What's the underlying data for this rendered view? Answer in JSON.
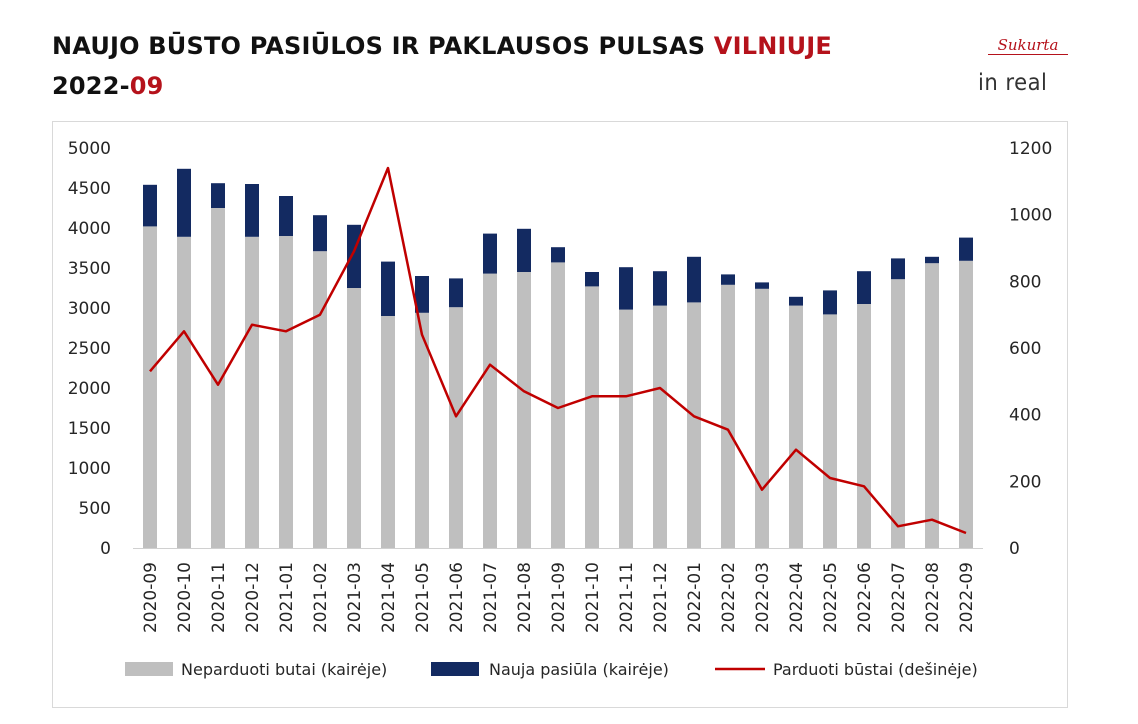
{
  "header": {
    "title_main": "NAUJO BŪSTO PASIŪLOS IR PAKLAUSOS PULSAS",
    "title_city": "VILNIUJE",
    "period_year": "2022-",
    "period_month": "09"
  },
  "logo": {
    "top_text": "Sukurta",
    "bottom_text": "in real"
  },
  "colors": {
    "accent": "#b5121b",
    "unsold_bar": "#bfbfbf",
    "new_supply_bar": "#132a61",
    "sold_line": "#c00000"
  },
  "chart_data": {
    "type": "bar",
    "stacked": true,
    "categories": [
      "2020-09",
      "2020-10",
      "2020-11",
      "2020-12",
      "2021-01",
      "2021-02",
      "2021-03",
      "2021-04",
      "2021-05",
      "2021-06",
      "2021-07",
      "2021-08",
      "2021-09",
      "2021-10",
      "2021-11",
      "2021-12",
      "2022-01",
      "2022-02",
      "2022-03",
      "2022-04",
      "2022-05",
      "2022-06",
      "2022-07",
      "2022-08",
      "2022-09"
    ],
    "series": [
      {
        "name": "Neparduoti butai (kairėje)",
        "type": "bar",
        "axis": "left",
        "values": [
          4020,
          3890,
          4250,
          3890,
          3900,
          3710,
          3250,
          2900,
          2940,
          3010,
          3430,
          3450,
          3570,
          3270,
          2980,
          3030,
          3070,
          3290,
          3240,
          3030,
          2920,
          3050,
          3360,
          3560,
          3590
        ]
      },
      {
        "name": "Nauja pasiūla (kairėje)",
        "type": "bar",
        "axis": "left",
        "values": [
          520,
          850,
          310,
          660,
          500,
          450,
          790,
          680,
          460,
          360,
          500,
          540,
          190,
          180,
          530,
          430,
          570,
          130,
          80,
          110,
          300,
          410,
          260,
          80,
          290
        ]
      },
      {
        "name": "Parduoti būstai (dešinėje)",
        "type": "line",
        "axis": "right",
        "values": [
          530,
          650,
          490,
          670,
          650,
          700,
          890,
          1140,
          640,
          395,
          550,
          470,
          420,
          455,
          455,
          480,
          395,
          355,
          175,
          295,
          210,
          185,
          65,
          85,
          45
        ]
      }
    ],
    "y_left": {
      "min": 0,
      "max": 5000,
      "ticks": [
        0,
        500,
        1000,
        1500,
        2000,
        2500,
        3000,
        3500,
        4000,
        4500,
        5000
      ]
    },
    "y_right": {
      "min": 0,
      "max": 1200,
      "ticks": [
        0,
        200,
        400,
        600,
        800,
        1000,
        1200
      ]
    },
    "legend_position": "bottom",
    "grid": false
  }
}
